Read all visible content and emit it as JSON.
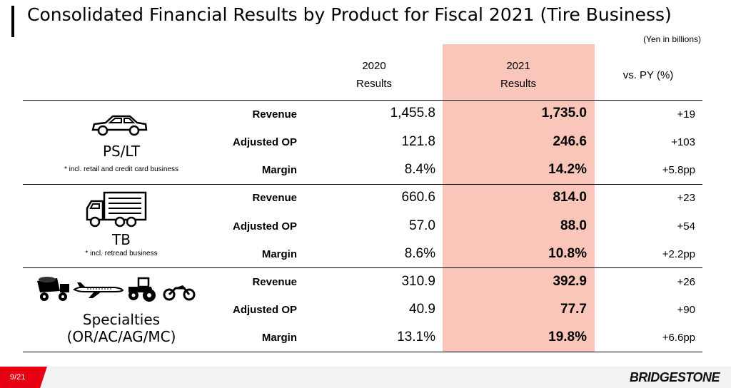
{
  "title": "Consolidated Financial Results by Product for Fiscal 2021 (Tire Business)",
  "unit_note": "(Yen in billions)",
  "columns": {
    "y2020_line1": "2020",
    "y2020_line2": "Results",
    "y2021_line1": "2021",
    "y2021_line2": "Results",
    "vs": "vs. PY (%)"
  },
  "highlight_color": "#f9c6b9",
  "segments": [
    {
      "name": "PS/LT",
      "note": "* incl. retail and credit card business",
      "icon": "car-icon",
      "rows": [
        {
          "label": "Revenue",
          "v2020": "1,455.8",
          "v2021": "1,735.0",
          "vs": "+19"
        },
        {
          "label": "Adjusted OP",
          "v2020": "121.8",
          "v2021": "246.6",
          "vs": "+103"
        },
        {
          "label": "Margin",
          "v2020": "8.4%",
          "v2021": "14.2%",
          "vs": "+5.8pp"
        }
      ]
    },
    {
      "name": "TB",
      "note": "* incl. retread business",
      "icon": "truck-icon",
      "rows": [
        {
          "label": "Revenue",
          "v2020": "660.6",
          "v2021": "814.0",
          "vs": "+23"
        },
        {
          "label": "Adjusted OP",
          "v2020": "57.0",
          "v2021": "88.0",
          "vs": "+54"
        },
        {
          "label": "Margin",
          "v2020": "8.6%",
          "v2021": "10.8%",
          "vs": "+2.2pp"
        }
      ]
    },
    {
      "name_line1": "Specialties",
      "name_line2": "(OR/AC/AG/MC)",
      "icons": [
        "dump-truck-icon",
        "airplane-icon",
        "tractor-icon",
        "motorcycle-icon"
      ],
      "rows": [
        {
          "label": "Revenue",
          "v2020": "310.9",
          "v2021": "392.9",
          "vs": "+26"
        },
        {
          "label": "Adjusted OP",
          "v2020": "40.9",
          "v2021": "77.7",
          "vs": "+90"
        },
        {
          "label": "Margin",
          "v2020": "13.1%",
          "v2021": "19.8%",
          "vs": "+6.6pp"
        }
      ]
    }
  ],
  "footer": {
    "page": "9/21",
    "brand": "BRIDGESTONE",
    "accent": "#e60012"
  }
}
